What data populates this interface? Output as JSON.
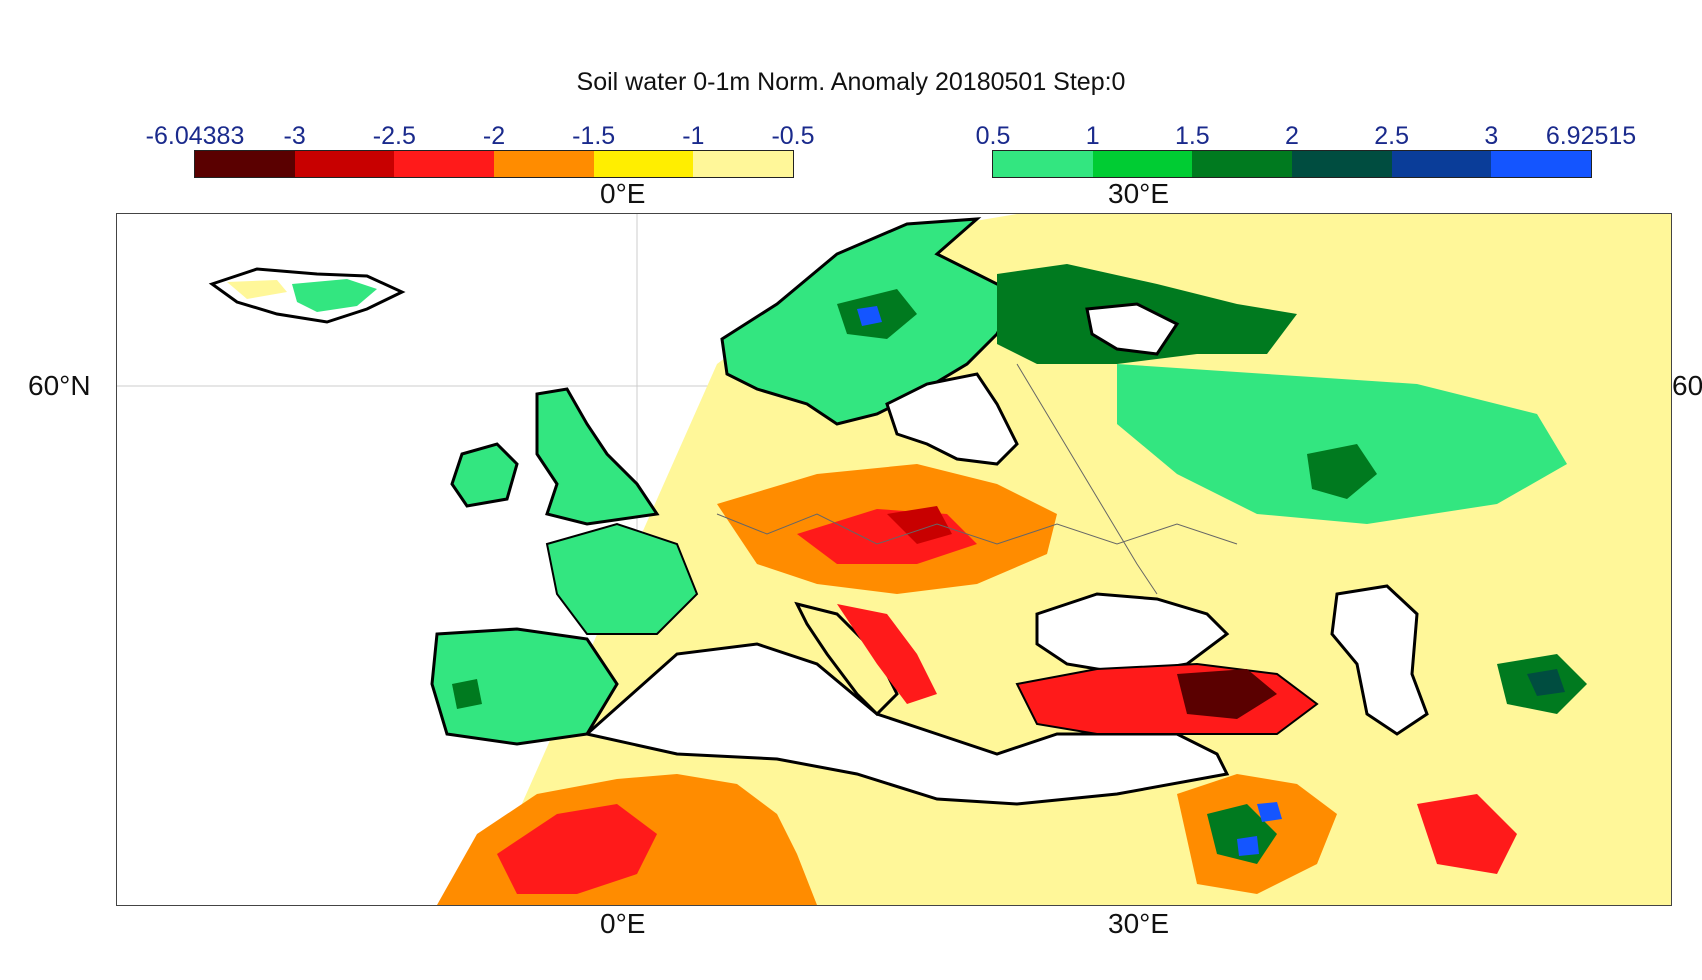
{
  "title": "Soil water 0-1m Norm. Anomaly 20180501 Step:0",
  "colorbar_negative": {
    "ticks": [
      "-6.04383",
      "-3",
      "-2.5",
      "-2",
      "-1.5",
      "-1",
      "-0.5"
    ],
    "colors": [
      "#5a0000",
      "#c80000",
      "#ff1a1a",
      "#ff8c00",
      "#ffee00",
      "#fff799"
    ]
  },
  "colorbar_positive": {
    "ticks": [
      "0.5",
      "1",
      "1.5",
      "2",
      "2.5",
      "3",
      "6.92515"
    ],
    "colors": [
      "#33e680",
      "#00cc33",
      "#007a1f",
      "#004d40",
      "#0a3d99",
      "#1455ff"
    ]
  },
  "axes": {
    "top_lon_0": "0°E",
    "top_lon_30": "30°E",
    "bottom_lon_0": "0°E",
    "bottom_lon_30": "30°E",
    "left_lat": "60°N",
    "right_lat": "60"
  },
  "legend_colors": {
    "ocean": "#ffffff",
    "coast": "#000000",
    "borders": "#666666",
    "grid": "#cccccc"
  }
}
